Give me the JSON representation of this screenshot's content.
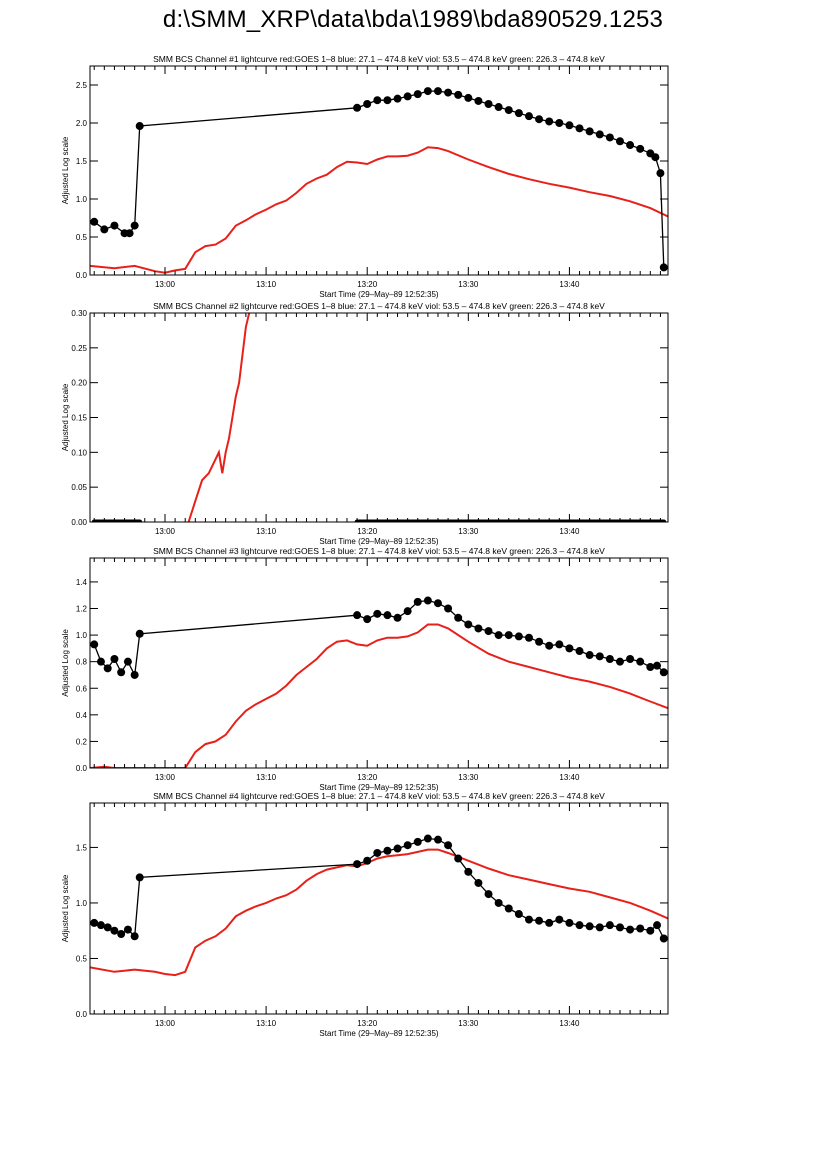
{
  "page": {
    "title": "d:\\SMM_XRP\\data\\bda\\1989\\bda890529.1253"
  },
  "colors": {
    "goes": "#e8201a",
    "bcs": "#000000",
    "axis": "#000000",
    "background": "#ffffff"
  },
  "chart_data": [
    {
      "type": "line",
      "title": "SMM BCS Channel #1 lightcurve  red:GOES 1–8  blue: 27.1 – 474.8 keV  viol: 53.5 – 474.8 keV  green: 226.3 – 474.8 keV",
      "xlabel": "Start Time (29–May–89 12:52:35)",
      "ylabel": "Adjusted Log scale",
      "xlim": [
        "12:52:35",
        "13:49:45"
      ],
      "x_ticks": [
        "13:00",
        "13:10",
        "13:20",
        "13:30",
        "13:40"
      ],
      "ylim": [
        0,
        2.75
      ],
      "y_ticks": [
        "0.0",
        "0.5",
        "1.0",
        "1.5",
        "2.0",
        "2.5"
      ],
      "grid": false,
      "series": [
        {
          "name": "red:GOES 1–8",
          "color": "#e8201a",
          "style": "line",
          "x": [
            "12:52:35",
            "12:55",
            "12:57",
            "12:59",
            "13:00",
            "13:01",
            "13:02",
            "13:03",
            "13:04",
            "13:05",
            "13:06",
            "13:07",
            "13:08",
            "13:09",
            "13:10",
            "13:11",
            "13:12",
            "13:13",
            "13:14",
            "13:15",
            "13:16",
            "13:17",
            "13:18",
            "13:19",
            "13:20",
            "13:21",
            "13:22",
            "13:23",
            "13:24",
            "13:25",
            "13:26",
            "13:27",
            "13:28",
            "13:30",
            "13:32",
            "13:34",
            "13:36",
            "13:38",
            "13:40",
            "13:42",
            "13:44",
            "13:46",
            "13:48",
            "13:49:45"
          ],
          "y": [
            0.12,
            0.09,
            0.12,
            0.05,
            0.03,
            0.06,
            0.08,
            0.3,
            0.38,
            0.4,
            0.48,
            0.65,
            0.72,
            0.8,
            0.86,
            0.93,
            0.98,
            1.08,
            1.2,
            1.27,
            1.32,
            1.42,
            1.49,
            1.48,
            1.46,
            1.52,
            1.56,
            1.56,
            1.57,
            1.61,
            1.68,
            1.67,
            1.63,
            1.52,
            1.42,
            1.33,
            1.26,
            1.2,
            1.15,
            1.09,
            1.04,
            0.97,
            0.88,
            0.77
          ]
        },
        {
          "name": "BCS channel #1",
          "color": "#000000",
          "style": "line+markers",
          "x": [
            "12:53",
            "12:54",
            "12:55",
            "12:56",
            "12:56:30",
            "12:57",
            "12:57:30",
            "13:19",
            "13:20",
            "13:21",
            "13:22",
            "13:23",
            "13:24",
            "13:25",
            "13:26",
            "13:27",
            "13:28",
            "13:29",
            "13:30",
            "13:31",
            "13:32",
            "13:33",
            "13:34",
            "13:35",
            "13:36",
            "13:37",
            "13:38",
            "13:39",
            "13:40",
            "13:41",
            "13:42",
            "13:43",
            "13:44",
            "13:45",
            "13:46",
            "13:47",
            "13:48",
            "13:48:30",
            "13:49",
            "13:49:20"
          ],
          "y": [
            0.7,
            0.6,
            0.65,
            0.55,
            0.55,
            0.65,
            1.96,
            2.2,
            2.25,
            2.3,
            2.3,
            2.32,
            2.35,
            2.38,
            2.42,
            2.42,
            2.4,
            2.37,
            2.33,
            2.29,
            2.25,
            2.21,
            2.17,
            2.13,
            2.09,
            2.05,
            2.02,
            2.0,
            1.97,
            1.93,
            1.89,
            1.85,
            1.81,
            1.76,
            1.71,
            1.66,
            1.6,
            1.55,
            1.34,
            0.1
          ]
        }
      ]
    },
    {
      "type": "line",
      "title": "SMM BCS Channel #2 lightcurve  red:GOES 1–8  blue: 27.1 – 474.8 keV  viol: 53.5 – 474.8 keV  green: 226.3 – 474.8 keV",
      "xlabel": "Start Time (29–May–89 12:52:35)",
      "ylabel": "Adjusted Log scale",
      "xlim": [
        "12:52:35",
        "13:49:45"
      ],
      "x_ticks": [
        "13:00",
        "13:10",
        "13:20",
        "13:30",
        "13:40"
      ],
      "ylim": [
        0,
        0.3
      ],
      "y_ticks": [
        "0.00",
        "0.05",
        "0.10",
        "0.15",
        "0.20",
        "0.25",
        "0.30"
      ],
      "grid": false,
      "series": [
        {
          "name": "red:GOES 1–8",
          "color": "#e8201a",
          "style": "line",
          "x": [
            "13:02:20",
            "13:03",
            "13:03:40",
            "13:04:20",
            "13:05",
            "13:05:20",
            "13:05:40",
            "13:06",
            "13:06:20",
            "13:06:40",
            "13:07",
            "13:07:20",
            "13:07:40",
            "13:08",
            "13:08:20"
          ],
          "y": [
            0.0,
            0.03,
            0.06,
            0.07,
            0.09,
            0.1,
            0.07,
            0.1,
            0.12,
            0.15,
            0.18,
            0.2,
            0.24,
            0.28,
            0.3
          ]
        },
        {
          "name": "BCS channel #2",
          "color": "#000000",
          "style": "markers-flat",
          "segments": [
            [
              "12:53",
              "12:57:30"
            ],
            [
              "13:19",
              "13:49:20"
            ]
          ],
          "y": 0.0
        }
      ]
    },
    {
      "type": "line",
      "title": "SMM BCS Channel #3 lightcurve  red:GOES 1–8  blue: 27.1 – 474.8 keV  viol: 53.5 – 474.8 keV  green: 226.3 – 474.8 keV",
      "xlabel": "Start Time (29–May–89 12:52:35)",
      "ylabel": "Adjusted Log scale",
      "xlim": [
        "12:52:35",
        "13:49:45"
      ],
      "x_ticks": [
        "13:00",
        "13:10",
        "13:20",
        "13:30",
        "13:40"
      ],
      "ylim": [
        0,
        1.58
      ],
      "y_ticks": [
        "0.0",
        "0.2",
        "0.4",
        "0.6",
        "0.8",
        "1.0",
        "1.2",
        "1.4"
      ],
      "grid": false,
      "series": [
        {
          "name": "red:GOES 1–8",
          "color": "#e8201a",
          "style": "line",
          "x": [
            "12:52:35",
            "12:54",
            "12:55",
            "12:57",
            "12:59",
            "13:00",
            "13:01",
            "13:02",
            "13:03",
            "13:04",
            "13:05",
            "13:06",
            "13:07",
            "13:08",
            "13:09",
            "13:10",
            "13:11",
            "13:12",
            "13:13",
            "13:14",
            "13:15",
            "13:16",
            "13:17",
            "13:18",
            "13:19",
            "13:20",
            "13:21",
            "13:22",
            "13:23",
            "13:24",
            "13:25",
            "13:26",
            "13:27",
            "13:28",
            "13:30",
            "13:32",
            "13:34",
            "13:36",
            "13:38",
            "13:40",
            "13:42",
            "13:44",
            "13:46",
            "13:48",
            "13:49:45"
          ],
          "y": [
            0.0,
            0.01,
            0.0,
            0.0,
            0.0,
            0.0,
            0.0,
            0.0,
            0.12,
            0.18,
            0.2,
            0.25,
            0.35,
            0.43,
            0.48,
            0.52,
            0.56,
            0.62,
            0.7,
            0.76,
            0.82,
            0.9,
            0.95,
            0.96,
            0.93,
            0.92,
            0.96,
            0.98,
            0.98,
            0.99,
            1.02,
            1.08,
            1.08,
            1.05,
            0.95,
            0.86,
            0.8,
            0.76,
            0.72,
            0.68,
            0.65,
            0.61,
            0.56,
            0.5,
            0.45
          ]
        },
        {
          "name": "BCS channel #3",
          "color": "#000000",
          "style": "line+markers",
          "x": [
            "12:53",
            "12:53:40",
            "12:54:20",
            "12:55",
            "12:55:40",
            "12:56:20",
            "12:57",
            "12:57:30",
            "13:19",
            "13:20",
            "13:21",
            "13:22",
            "13:23",
            "13:24",
            "13:25",
            "13:26",
            "13:27",
            "13:28",
            "13:29",
            "13:30",
            "13:31",
            "13:32",
            "13:33",
            "13:34",
            "13:35",
            "13:36",
            "13:37",
            "13:38",
            "13:39",
            "13:40",
            "13:41",
            "13:42",
            "13:43",
            "13:44",
            "13:45",
            "13:46",
            "13:47",
            "13:48",
            "13:48:40",
            "13:49:20"
          ],
          "y": [
            0.93,
            0.8,
            0.75,
            0.82,
            0.72,
            0.8,
            0.7,
            1.01,
            1.15,
            1.12,
            1.16,
            1.15,
            1.13,
            1.18,
            1.25,
            1.26,
            1.24,
            1.2,
            1.13,
            1.08,
            1.05,
            1.03,
            1.0,
            1.0,
            0.99,
            0.98,
            0.95,
            0.92,
            0.93,
            0.9,
            0.88,
            0.85,
            0.84,
            0.82,
            0.8,
            0.82,
            0.8,
            0.76,
            0.77,
            0.72
          ]
        }
      ]
    },
    {
      "type": "line",
      "title": "SMM BCS Channel #4 lightcurve  red:GOES 1–8  blue: 27.1 – 474.8 keV  viol: 53.5 – 474.8 keV  green: 226.3 – 474.8 keV",
      "xlabel": "Start Time (29–May–89 12:52:35)",
      "ylabel": "Adjusted Log scale",
      "xlim": [
        "12:52:35",
        "13:49:45"
      ],
      "x_ticks": [
        "13:00",
        "13:10",
        "13:20",
        "13:30",
        "13:40"
      ],
      "ylim": [
        0,
        1.9
      ],
      "y_ticks": [
        "0.0",
        "0.5",
        "1.0",
        "1.5"
      ],
      "grid": false,
      "series": [
        {
          "name": "red:GOES 1–8",
          "color": "#e8201a",
          "style": "line",
          "x": [
            "12:52:35",
            "12:55",
            "12:57",
            "12:59",
            "13:00",
            "13:01",
            "13:02",
            "13:03",
            "13:04",
            "13:05",
            "13:06",
            "13:07",
            "13:08",
            "13:09",
            "13:10",
            "13:11",
            "13:12",
            "13:13",
            "13:14",
            "13:15",
            "13:16",
            "13:17",
            "13:18",
            "13:19",
            "13:20",
            "13:21",
            "13:22",
            "13:23",
            "13:24",
            "13:25",
            "13:26",
            "13:27",
            "13:28",
            "13:30",
            "13:32",
            "13:34",
            "13:36",
            "13:38",
            "13:40",
            "13:42",
            "13:44",
            "13:46",
            "13:48",
            "13:49:45"
          ],
          "y": [
            0.42,
            0.38,
            0.4,
            0.38,
            0.36,
            0.35,
            0.38,
            0.6,
            0.66,
            0.7,
            0.77,
            0.88,
            0.93,
            0.97,
            1.0,
            1.04,
            1.07,
            1.12,
            1.2,
            1.26,
            1.3,
            1.32,
            1.34,
            1.33,
            1.36,
            1.4,
            1.42,
            1.43,
            1.44,
            1.46,
            1.48,
            1.48,
            1.45,
            1.38,
            1.31,
            1.25,
            1.21,
            1.17,
            1.13,
            1.1,
            1.05,
            1.0,
            0.93,
            0.86
          ]
        },
        {
          "name": "BCS channel #4",
          "color": "#000000",
          "style": "line+markers",
          "x": [
            "12:53",
            "12:53:40",
            "12:54:20",
            "12:55",
            "12:55:40",
            "12:56:20",
            "12:57",
            "12:57:30",
            "13:19",
            "13:20",
            "13:21",
            "13:22",
            "13:23",
            "13:24",
            "13:25",
            "13:26",
            "13:27",
            "13:28",
            "13:29",
            "13:30",
            "13:31",
            "13:32",
            "13:33",
            "13:34",
            "13:35",
            "13:36",
            "13:37",
            "13:38",
            "13:39",
            "13:40",
            "13:41",
            "13:42",
            "13:43",
            "13:44",
            "13:45",
            "13:46",
            "13:47",
            "13:48",
            "13:48:40",
            "13:49:20"
          ],
          "y": [
            0.82,
            0.8,
            0.78,
            0.75,
            0.72,
            0.76,
            0.7,
            1.23,
            1.35,
            1.38,
            1.45,
            1.47,
            1.49,
            1.52,
            1.55,
            1.58,
            1.57,
            1.52,
            1.4,
            1.28,
            1.18,
            1.08,
            1.0,
            0.95,
            0.9,
            0.85,
            0.84,
            0.82,
            0.85,
            0.82,
            0.8,
            0.79,
            0.78,
            0.8,
            0.78,
            0.76,
            0.77,
            0.75,
            0.8,
            0.68
          ]
        }
      ]
    }
  ]
}
